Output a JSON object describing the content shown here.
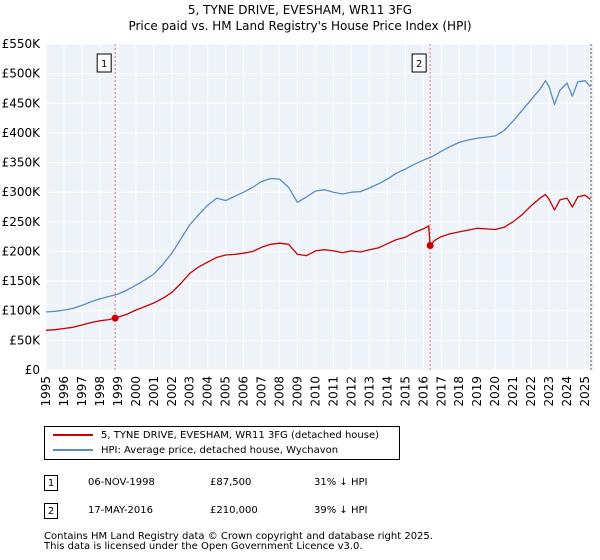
{
  "chart_data": {
    "type": "line",
    "title": "5, TYNE DRIVE, EVESHAM, WR11 3FG",
    "subtitle": "Price paid vs. HM Land Registry's House Price Index (HPI)",
    "xlabel": "",
    "ylabel": "",
    "xlim": [
      1995,
      2025.5
    ],
    "ylim": [
      0,
      550000
    ],
    "yticks": [
      0,
      50000,
      100000,
      150000,
      200000,
      250000,
      300000,
      350000,
      400000,
      450000,
      500000,
      550000
    ],
    "ytick_labels": [
      "£0",
      "£50K",
      "£100K",
      "£150K",
      "£200K",
      "£250K",
      "£300K",
      "£350K",
      "£400K",
      "£450K",
      "£500K",
      "£550K"
    ],
    "xticks": [
      "1995",
      "1996",
      "1997",
      "1998",
      "1999",
      "2000",
      "2001",
      "2002",
      "2003",
      "2004",
      "2005",
      "2006",
      "2007",
      "2008",
      "2009",
      "2010",
      "2011",
      "2012",
      "2013",
      "2014",
      "2015",
      "2016",
      "2017",
      "2018",
      "2019",
      "2020",
      "2021",
      "2022",
      "2023",
      "2024",
      "2025"
    ],
    "grid": true,
    "series": [
      {
        "name": "5, TYNE DRIVE, EVESHAM, WR11 3FG (detached house)",
        "color": "#cc0000",
        "x": [
          1995.0,
          1995.5,
          1996.0,
          1996.5,
          1997.0,
          1997.5,
          1998.0,
          1998.5,
          1998.85,
          1999.5,
          2000.0,
          2000.5,
          2001.0,
          2001.5,
          2002.0,
          2002.5,
          2003.0,
          2003.5,
          2004.0,
          2004.5,
          2005.0,
          2005.5,
          2006.0,
          2006.5,
          2007.0,
          2007.5,
          2008.0,
          2008.5,
          2009.0,
          2009.5,
          2010.0,
          2010.5,
          2011.0,
          2011.5,
          2012.0,
          2012.5,
          2013.0,
          2013.5,
          2014.0,
          2014.5,
          2015.0,
          2015.5,
          2016.0,
          2016.3,
          2016.38,
          2016.6,
          2017.0,
          2017.5,
          2018.0,
          2018.5,
          2019.0,
          2019.5,
          2020.0,
          2020.5,
          2021.0,
          2021.5,
          2022.0,
          2022.5,
          2022.8,
          2023.0,
          2023.3,
          2023.6,
          2024.0,
          2024.3,
          2024.6,
          2025.0,
          2025.3
        ],
        "values": [
          67000,
          68000,
          70000,
          72000,
          76000,
          80000,
          83000,
          85000,
          87500,
          94000,
          101000,
          107000,
          113000,
          121000,
          131000,
          146000,
          163000,
          174000,
          182000,
          190000,
          194000,
          195000,
          197000,
          200000,
          207000,
          212000,
          214000,
          212000,
          195000,
          193000,
          201000,
          203000,
          201000,
          198000,
          201000,
          199000,
          203000,
          206000,
          213000,
          220000,
          224000,
          232000,
          238000,
          243000,
          210000,
          218000,
          225000,
          230000,
          233000,
          236000,
          239000,
          238000,
          237000,
          241000,
          250000,
          262000,
          277000,
          290000,
          296000,
          288000,
          270000,
          287000,
          290000,
          275000,
          292000,
          295000,
          288000
        ]
      },
      {
        "name": "HPI: Average price, detached house, Wychavon",
        "color": "#5a8dc8",
        "x": [
          1995.0,
          1995.5,
          1996.0,
          1996.5,
          1997.0,
          1997.5,
          1998.0,
          1998.5,
          1999.0,
          1999.5,
          2000.0,
          2000.5,
          2001.0,
          2001.5,
          2002.0,
          2002.5,
          2003.0,
          2003.5,
          2004.0,
          2004.5,
          2005.0,
          2005.5,
          2006.0,
          2006.5,
          2007.0,
          2007.5,
          2008.0,
          2008.5,
          2009.0,
          2009.5,
          2010.0,
          2010.5,
          2011.0,
          2011.5,
          2012.0,
          2012.5,
          2013.0,
          2013.5,
          2014.0,
          2014.5,
          2015.0,
          2015.5,
          2016.0,
          2016.5,
          2017.0,
          2017.5,
          2018.0,
          2018.5,
          2019.0,
          2019.5,
          2020.0,
          2020.5,
          2021.0,
          2021.5,
          2022.0,
          2022.5,
          2022.8,
          2023.0,
          2023.3,
          2023.6,
          2024.0,
          2024.3,
          2024.6,
          2025.0,
          2025.3
        ],
        "values": [
          98000,
          99000,
          101000,
          104000,
          109000,
          115000,
          120000,
          124000,
          128000,
          135000,
          143000,
          152000,
          162000,
          178000,
          197000,
          221000,
          245000,
          262000,
          278000,
          290000,
          286000,
          293000,
          300000,
          308000,
          318000,
          323000,
          322000,
          308000,
          283000,
          292000,
          302000,
          304000,
          300000,
          297000,
          300000,
          301000,
          307000,
          314000,
          322000,
          332000,
          339000,
          347000,
          354000,
          360000,
          369000,
          377000,
          384000,
          388000,
          391000,
          393000,
          395000,
          404000,
          420000,
          438000,
          456000,
          474000,
          488000,
          478000,
          448000,
          472000,
          484000,
          462000,
          486000,
          488000,
          478000
        ]
      }
    ],
    "annotations": [
      {
        "label": "1",
        "x": 1998.85
      },
      {
        "label": "2",
        "x": 2016.38
      }
    ],
    "sale_points": [
      {
        "x": 1998.85,
        "value": 87500
      },
      {
        "x": 2016.38,
        "value": 210000
      }
    ]
  },
  "legend": {
    "items": [
      {
        "label": "5, TYNE DRIVE, EVESHAM, WR11 3FG (detached house)",
        "color": "#cc0000"
      },
      {
        "label": "HPI: Average price, detached house, Wychavon",
        "color": "#5a8dc8"
      }
    ]
  },
  "sales": [
    {
      "num": "1",
      "date": "06-NOV-1998",
      "price": "£87,500",
      "hpi": "31% ↓ HPI"
    },
    {
      "num": "2",
      "date": "17-MAY-2016",
      "price": "£210,000",
      "hpi": "39% ↓ HPI"
    }
  ],
  "footer": {
    "line1": "Contains HM Land Registry data © Crown copyright and database right 2025.",
    "line2": "This data is licensed under the Open Government Licence v3.0."
  }
}
